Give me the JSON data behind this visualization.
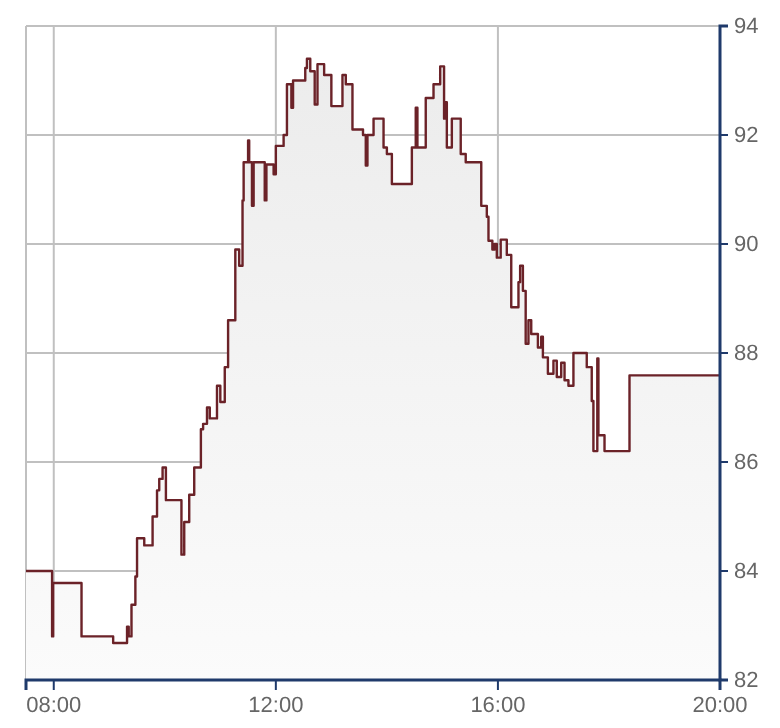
{
  "chart_data": {
    "type": "step",
    "xlim": [
      7.5,
      20
    ],
    "xticks": [
      {
        "value": 8,
        "label": "08:00"
      },
      {
        "value": 12,
        "label": "12:00"
      },
      {
        "value": 16,
        "label": "16:00"
      },
      {
        "value": 20,
        "label": "20:00"
      }
    ],
    "ylim": [
      82,
      94
    ],
    "yticks": [
      82,
      84,
      86,
      88,
      90,
      92,
      94
    ],
    "grid": true,
    "series": [
      {
        "type": "area",
        "color": "#ececec",
        "x": [
          7.5,
          7.97,
          7.99,
          8.5,
          9.07,
          9.32,
          9.35,
          9.4,
          9.47,
          9.5,
          9.63,
          9.78,
          9.86,
          9.9,
          9.96,
          10.02,
          10.3,
          10.35,
          10.44,
          10.53,
          10.65,
          10.69,
          10.76,
          10.81,
          10.94,
          11.0,
          11.08,
          11.14,
          11.27,
          11.34,
          11.4,
          11.42,
          11.5,
          11.52,
          11.57,
          11.6,
          11.8,
          11.83,
          11.96,
          12.0,
          12.14,
          12.2,
          12.28,
          12.31,
          12.53,
          12.56,
          12.62,
          12.7,
          12.75,
          12.87,
          13.0,
          13.2,
          13.26,
          13.38,
          13.57,
          13.62,
          13.65,
          13.76,
          13.94,
          14.0,
          14.09,
          14.45,
          14.52,
          14.55,
          14.7,
          14.84,
          14.96,
          15.03,
          15.06,
          15.08,
          15.17,
          15.33,
          15.42,
          15.7,
          15.8,
          15.83,
          15.9,
          15.94,
          15.98,
          16.05,
          16.16,
          16.24,
          16.37,
          16.4,
          16.45,
          16.5,
          16.55,
          16.6,
          16.72,
          16.78,
          16.81,
          16.9,
          17.0,
          17.06,
          17.14,
          17.2,
          17.27,
          17.36,
          17.6,
          17.69,
          17.72,
          17.79,
          17.81,
          17.92,
          18.37,
          20
        ],
        "values": [
          84.0,
          82.8,
          83.78,
          82.8,
          82.68,
          82.98,
          82.8,
          83.38,
          83.9,
          84.6,
          84.47,
          85.0,
          85.48,
          85.69,
          85.9,
          85.3,
          84.3,
          84.9,
          85.4,
          85.9,
          86.6,
          86.7,
          87.0,
          86.8,
          87.4,
          87.1,
          87.74,
          88.6,
          89.9,
          89.6,
          90.8,
          91.5,
          91.9,
          91.5,
          90.7,
          91.5,
          90.8,
          91.46,
          91.28,
          91.8,
          92.0,
          92.93,
          92.5,
          93.0,
          93.23,
          93.4,
          93.17,
          92.56,
          93.3,
          93.1,
          92.53,
          93.1,
          92.93,
          92.1,
          92.0,
          91.44,
          92.0,
          92.3,
          91.77,
          91.65,
          91.1,
          91.77,
          92.5,
          91.77,
          92.68,
          92.93,
          93.26,
          92.3,
          92.6,
          91.77,
          92.3,
          91.65,
          91.5,
          90.7,
          90.5,
          90.06,
          89.9,
          90.0,
          89.75,
          90.08,
          89.8,
          88.84,
          89.3,
          89.6,
          89.14,
          88.17,
          88.6,
          88.35,
          88.1,
          88.3,
          87.92,
          87.62,
          87.86,
          87.56,
          87.82,
          87.5,
          87.4,
          88.0,
          87.74,
          87.12,
          86.2,
          87.9,
          86.49,
          86.2,
          87.59,
          87.59
        ]
      },
      {
        "color": "#6b2228",
        "x": [
          7.5,
          7.97,
          7.99,
          8.5,
          9.07,
          9.32,
          9.35,
          9.4,
          9.47,
          9.5,
          9.63,
          9.78,
          9.86,
          9.9,
          9.96,
          10.02,
          10.3,
          10.35,
          10.44,
          10.53,
          10.65,
          10.69,
          10.76,
          10.81,
          10.94,
          11.0,
          11.08,
          11.14,
          11.27,
          11.34,
          11.4,
          11.42,
          11.5,
          11.52,
          11.57,
          11.6,
          11.8,
          11.83,
          11.96,
          12.0,
          12.14,
          12.2,
          12.28,
          12.31,
          12.53,
          12.56,
          12.62,
          12.7,
          12.75,
          12.87,
          13.0,
          13.2,
          13.26,
          13.38,
          13.57,
          13.62,
          13.65,
          13.76,
          13.94,
          14.0,
          14.09,
          14.45,
          14.52,
          14.55,
          14.7,
          14.84,
          14.96,
          15.03,
          15.06,
          15.08,
          15.17,
          15.33,
          15.42,
          15.7,
          15.8,
          15.83,
          15.9,
          15.94,
          15.98,
          16.05,
          16.16,
          16.24,
          16.37,
          16.4,
          16.45,
          16.5,
          16.55,
          16.6,
          16.72,
          16.78,
          16.81,
          16.9,
          17.0,
          17.06,
          17.14,
          17.2,
          17.27,
          17.36,
          17.6,
          17.69,
          17.72,
          17.79,
          17.81,
          17.92,
          18.37,
          20
        ],
        "values": [
          84.0,
          82.8,
          83.78,
          82.8,
          82.68,
          82.98,
          82.8,
          83.38,
          83.9,
          84.6,
          84.47,
          85.0,
          85.48,
          85.69,
          85.9,
          85.3,
          84.3,
          84.9,
          85.4,
          85.9,
          86.6,
          86.7,
          87.0,
          86.8,
          87.4,
          87.1,
          87.74,
          88.6,
          89.9,
          89.6,
          90.8,
          91.5,
          91.9,
          91.5,
          90.7,
          91.5,
          90.8,
          91.46,
          91.28,
          91.8,
          92.0,
          92.93,
          92.5,
          93.0,
          93.23,
          93.4,
          93.17,
          92.56,
          93.3,
          93.1,
          92.53,
          93.1,
          92.93,
          92.1,
          92.0,
          91.44,
          92.0,
          92.3,
          91.77,
          91.65,
          91.1,
          91.77,
          92.5,
          91.77,
          92.68,
          92.93,
          93.26,
          92.3,
          92.6,
          91.77,
          92.3,
          91.65,
          91.5,
          90.7,
          90.5,
          90.06,
          89.9,
          90.0,
          89.75,
          90.08,
          89.8,
          88.84,
          89.3,
          89.6,
          89.14,
          88.17,
          88.6,
          88.35,
          88.1,
          88.3,
          87.92,
          87.62,
          87.86,
          87.56,
          87.82,
          87.5,
          87.4,
          88.0,
          87.74,
          87.12,
          86.2,
          87.9,
          86.49,
          86.2,
          87.59,
          87.59
        ]
      }
    ]
  }
}
